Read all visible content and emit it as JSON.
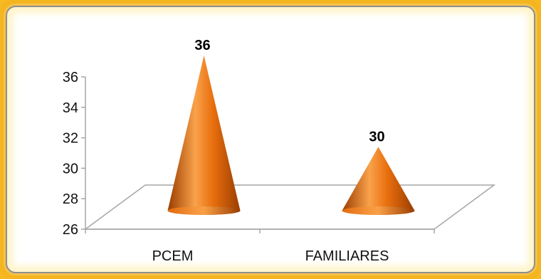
{
  "chart_data": {
    "type": "bar",
    "bar_shape": "cone",
    "categories": [
      "PCEM",
      "FAMILIARES"
    ],
    "values": [
      36,
      30
    ],
    "data_labels": [
      "36",
      "30"
    ],
    "ylim": [
      26,
      36
    ],
    "yticks": [
      "26",
      "28",
      "30",
      "32",
      "34",
      "36"
    ],
    "title": "",
    "xlabel": "",
    "ylabel": "",
    "grid": false,
    "legend": "none",
    "colors": {
      "cone_light": "#f9a24a",
      "cone_mid": "#e96f0e",
      "cone_dark": "#9a3d02",
      "frame": "#f5b51f",
      "axis": "#a6a6a6"
    }
  }
}
